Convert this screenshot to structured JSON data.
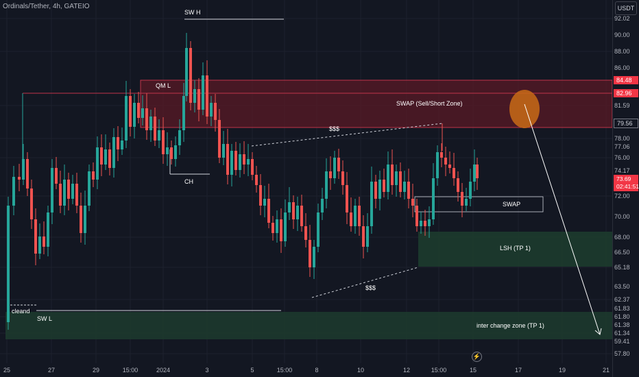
{
  "header": {
    "symbol": "Ordinals/Tether, 4h, GATEIO",
    "currency_button": "USDT"
  },
  "price_axis": {
    "labels": [
      "92.02",
      "90.00",
      "88.00",
      "86.00",
      "81.59",
      "79.56",
      "78.00",
      "77.06",
      "76.00",
      "74.17",
      "72.00",
      "70.00",
      "68.00",
      "66.50",
      "65.18",
      "63.50",
      "62.37",
      "61.83",
      "61.80",
      "61.38",
      "61.34",
      "59.41",
      "57.80"
    ],
    "badges": [
      {
        "text": "84.48",
        "style": "red"
      },
      {
        "text": "82.96",
        "style": "red"
      },
      {
        "text": "79.56",
        "style": "outline"
      }
    ],
    "current_price": "73.69",
    "countdown": "02:41:51"
  },
  "time_axis": [
    "25",
    "27",
    "29",
    "15:00",
    "2024",
    "3",
    "5",
    "15:00",
    "8",
    "10",
    "12",
    "15:00",
    "15",
    "17",
    "19",
    "21"
  ],
  "annotations": {
    "sw_h": "SW H",
    "qm_l": "QM L",
    "ch": "CH",
    "swap_sell_zone": "SWAP (Sell/Short Zone)",
    "liquidity_top": "$$$",
    "liquidity_bottom": "$$$",
    "swap": "SWAP",
    "lsh_tp1": "LSH (TP 1)",
    "cleand": "cleand",
    "sw_l": "SW L",
    "inter_change_zone": "inter change zone (TP 1)"
  },
  "colors": {
    "bull": "#26a69a",
    "bear": "#ef5350",
    "background": "#131722",
    "sell_zone": "#6b1c2a",
    "tp_zone": "#1e3b2f"
  },
  "icons": {
    "replay": "flash-icon"
  }
}
